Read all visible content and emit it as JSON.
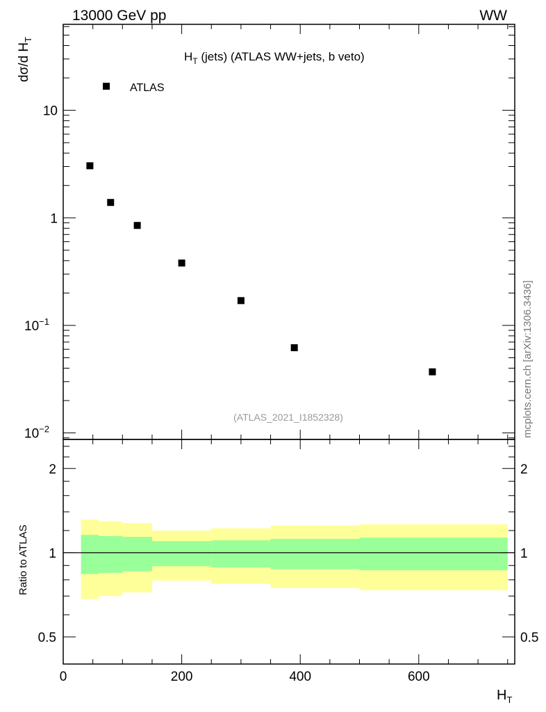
{
  "header": {
    "energy_label": "13000 GeV pp",
    "process_label": "WW"
  },
  "side_label": "mcplots.cern.ch [arXiv:1306.3436]",
  "chart_data": [
    {
      "type": "scatter",
      "title_main": "H",
      "title_sub": "T",
      "title_rest": " (jets) (ATLAS WW+jets, b veto)",
      "ylabel_main": "dσ/d H",
      "ylabel_sub": "T",
      "yscale": "log",
      "ylim": [
        0.0087,
        63
      ],
      "xlim": [
        0,
        762
      ],
      "legend": {
        "label": "ATLAS",
        "placement": "top-left"
      },
      "analysis_label": "(ATLAS_2021_I1852328)",
      "yticks": [
        {
          "value": 10,
          "base": "10",
          "exp": ""
        },
        {
          "value": 1,
          "base": "1",
          "exp": ""
        },
        {
          "value": 0.1,
          "base": "10",
          "exp": "−1"
        },
        {
          "value": 0.01,
          "base": "10",
          "exp": "−2"
        }
      ],
      "series": [
        {
          "name": "ATLAS",
          "x": [
            45,
            80,
            125,
            200,
            300,
            390,
            623
          ],
          "y": [
            3.05,
            1.39,
            0.85,
            0.38,
            0.17,
            0.062,
            0.037
          ]
        }
      ]
    },
    {
      "type": "area",
      "ylabel": "Ratio to ATLAS",
      "xlabel_main": "H",
      "xlabel_sub": "T",
      "yscale": "log",
      "ylim": [
        0.4,
        2.54
      ],
      "xlim": [
        0,
        762
      ],
      "xticks": [
        "0",
        "200",
        "400",
        "600"
      ],
      "yticks": [
        {
          "value": 2,
          "label": "2"
        },
        {
          "value": 1,
          "label": "1"
        },
        {
          "value": 0.5,
          "label": "0.5"
        }
      ],
      "bin_edges": [
        30,
        60,
        100,
        150,
        250,
        350,
        500,
        750
      ],
      "bands": [
        {
          "name": "total-uncertainty",
          "color": "#ffff99",
          "upper": [
            1.314,
            1.294,
            1.277,
            1.199,
            1.222,
            1.25,
            1.263
          ],
          "lower": [
            0.683,
            0.7,
            0.721,
            0.795,
            0.774,
            0.748,
            0.734
          ]
        },
        {
          "name": "stat-uncertainty",
          "color": "#99ff99",
          "upper": [
            1.158,
            1.147,
            1.139,
            1.1,
            1.107,
            1.121,
            1.132
          ],
          "lower": [
            0.839,
            0.847,
            0.858,
            0.895,
            0.886,
            0.873,
            0.865
          ]
        }
      ],
      "reference_line": 1
    }
  ]
}
